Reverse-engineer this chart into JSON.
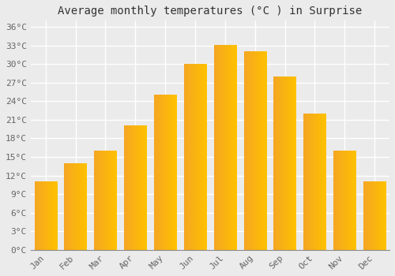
{
  "title": "Average monthly temperatures (°C ) in Surprise",
  "months": [
    "Jan",
    "Feb",
    "Mar",
    "Apr",
    "May",
    "Jun",
    "Jul",
    "Aug",
    "Sep",
    "Oct",
    "Nov",
    "Dec"
  ],
  "values": [
    11,
    14,
    16,
    20,
    25,
    30,
    33,
    32,
    28,
    22,
    16,
    11
  ],
  "bar_color_left": "#F5A623",
  "bar_color_right": "#FFC200",
  "background_color": "#EBEBEB",
  "grid_color": "#FFFFFF",
  "ylim": [
    0,
    37
  ],
  "yticks": [
    0,
    3,
    6,
    9,
    12,
    15,
    18,
    21,
    24,
    27,
    30,
    33,
    36
  ],
  "title_fontsize": 10,
  "tick_fontsize": 8,
  "bar_width": 0.75
}
